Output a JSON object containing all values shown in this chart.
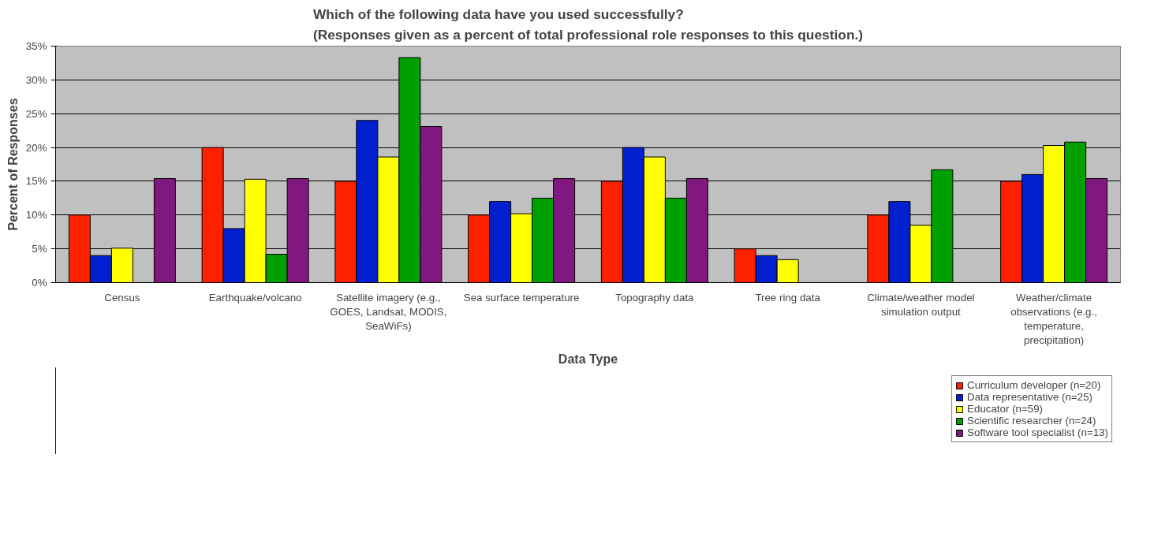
{
  "chart_data": {
    "type": "bar",
    "title": "Which of the following data have you used successfully?\n(Responses given as a percent of total professional role responses to this question.)",
    "xlabel": "Data Type",
    "ylabel": "Percent of Responses",
    "categories": [
      "Census",
      "Earthquake/volcano",
      "Satellite imagery (e.g., GOES, Landsat, MODIS, SeaWiFs)",
      "Sea surface temperature",
      "Topography data",
      "Tree ring data",
      "Climate/weather model simulation output",
      "Weather/climate observations (e.g., temperature, precipitation)"
    ],
    "series": [
      {
        "name": "Curriculum developer (n=20)",
        "color": "#ff2000",
        "values": [
          10,
          20,
          15,
          10,
          15,
          5,
          10,
          15
        ]
      },
      {
        "name": "Data representative (n=25)",
        "color": "#0020d0",
        "values": [
          4,
          8,
          24,
          12,
          20,
          4,
          12,
          16
        ]
      },
      {
        "name": "Educator (n=59)",
        "color": "#ffff00",
        "values": [
          5.1,
          15.3,
          18.6,
          10.2,
          18.6,
          3.4,
          8.5,
          20.3
        ]
      },
      {
        "name": "Scientific researcher (n=24)",
        "color": "#00a000",
        "values": [
          null,
          4.2,
          33.3,
          12.5,
          12.5,
          null,
          16.7,
          20.8
        ]
      },
      {
        "name": "Software tool specialist (n=13)",
        "color": "#801880",
        "values": [
          15.4,
          15.4,
          23.1,
          15.4,
          15.4,
          null,
          null,
          15.4
        ]
      }
    ],
    "ylim": [
      0,
      35
    ],
    "yticks": [
      {
        "value": 0,
        "label": "0%"
      },
      {
        "value": 5,
        "label": "5%"
      },
      {
        "value": 10,
        "label": "10%"
      },
      {
        "value": 15,
        "label": "15%"
      },
      {
        "value": 20,
        "label": "20%"
      },
      {
        "value": 25,
        "label": "25%"
      },
      {
        "value": 30,
        "label": "30%"
      },
      {
        "value": 35,
        "label": "35%"
      }
    ],
    "grid": "y",
    "legend": "bottom right"
  }
}
